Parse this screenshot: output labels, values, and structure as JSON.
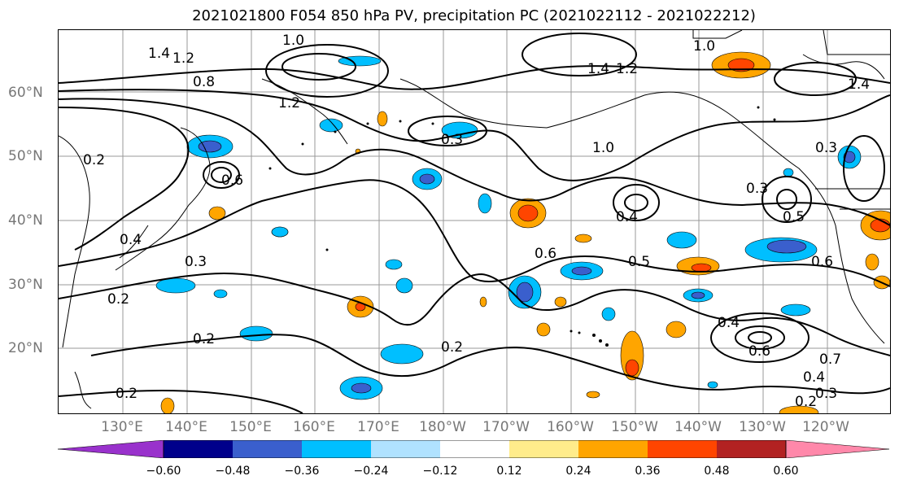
{
  "title": "2021021800 F054 850 hPa PV, precipitation PC (2021022112 - 2021022212)",
  "lat_labels": [
    "60°N",
    "50°N",
    "40°N",
    "30°N",
    "20°N"
  ],
  "lon_labels": [
    "130°E",
    "140°E",
    "150°E",
    "160°E",
    "170°E",
    "180°W",
    "170°W",
    "160°W",
    "150°W",
    "140°W",
    "130°W",
    "120°W"
  ],
  "contour_labels": [
    "1.4",
    "1.2",
    "1.0",
    "0.8",
    "0.6",
    "0.5",
    "0.4",
    "0.3",
    "0.2",
    "0.7"
  ],
  "colorbar": {
    "ticks": [
      "−0.60",
      "−0.48",
      "−0.36",
      "−0.24",
      "−0.12",
      "0.12",
      "0.24",
      "0.36",
      "0.48",
      "0.60"
    ],
    "colors": [
      "#9932cc",
      "#00008b",
      "#3a5fcd",
      "#00bfff",
      "#b0e2ff",
      "#ffffff",
      "#ffec8b",
      "#ffa500",
      "#ff4500",
      "#b22222",
      "#ff88aa"
    ]
  }
}
